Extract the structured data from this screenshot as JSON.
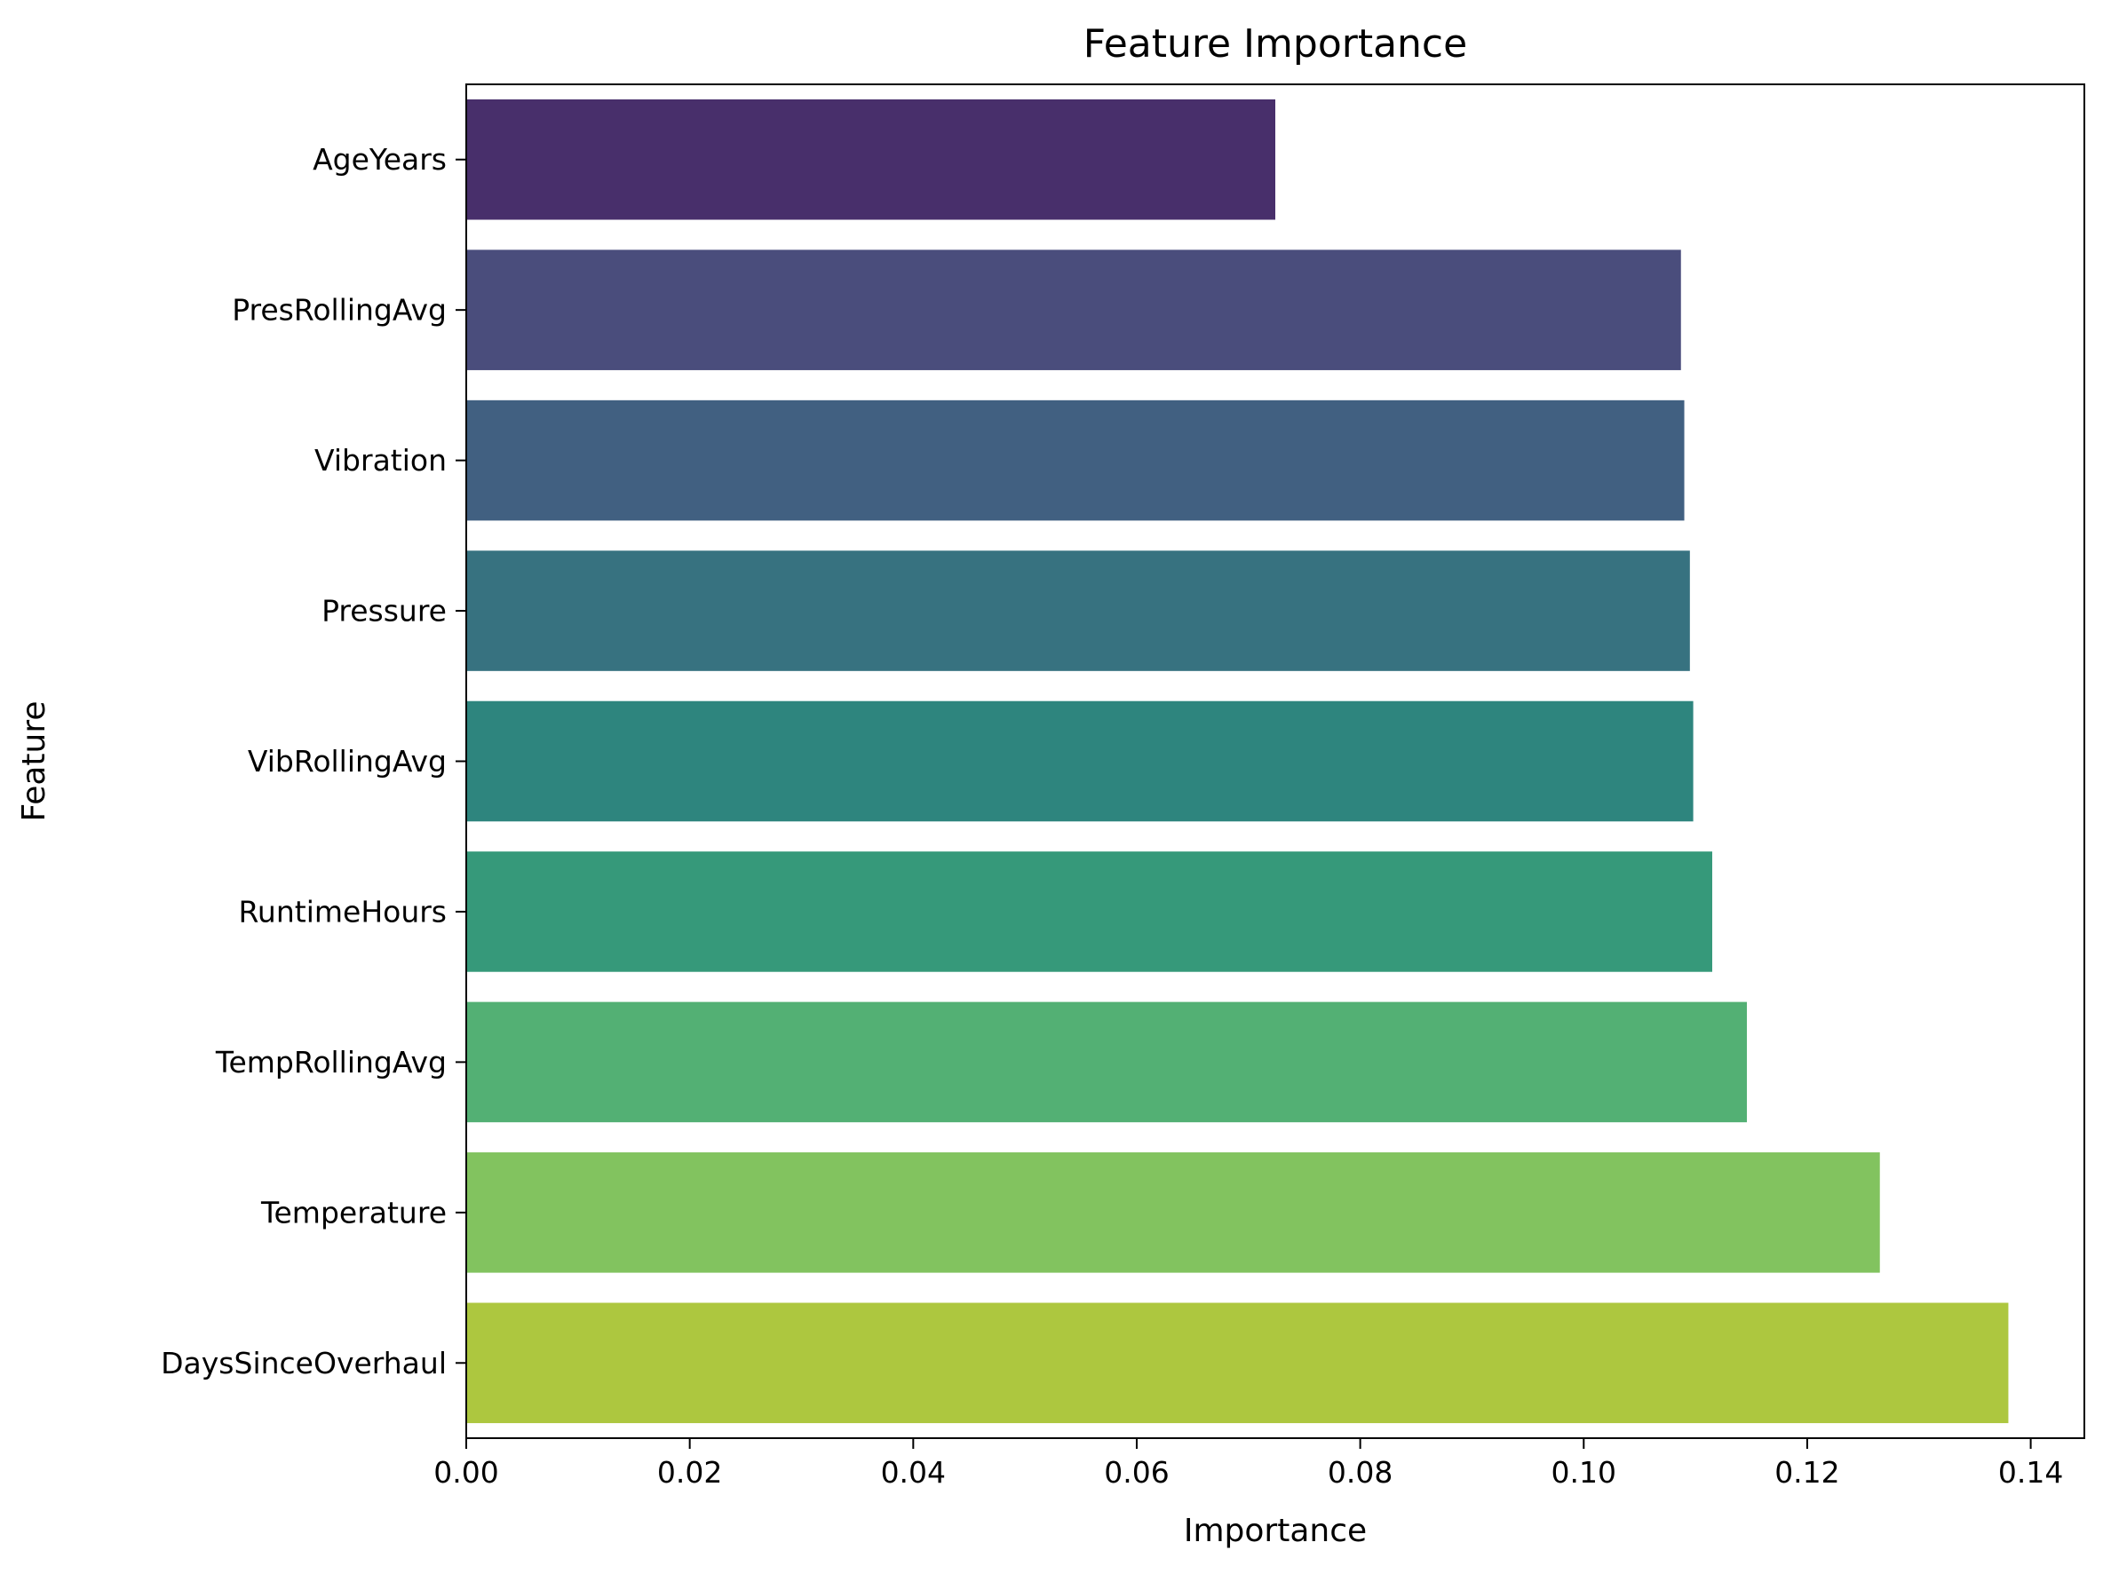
{
  "chart_data": {
    "type": "bar",
    "orientation": "horizontal",
    "title": "Feature Importance",
    "xlabel": "Importance",
    "ylabel": "Feature",
    "xlim": [
      0,
      0.1448
    ],
    "xticks": [
      0.0,
      0.02,
      0.04,
      0.06,
      0.08,
      0.1,
      0.12,
      0.14
    ],
    "xtick_labels": [
      "0.00",
      "0.02",
      "0.04",
      "0.06",
      "0.08",
      "0.10",
      "0.12",
      "0.14"
    ],
    "grid": false,
    "legend": "none",
    "categories": [
      "AgeYears",
      "PresRollingAvg",
      "Vibration",
      "Pressure",
      "VibRollingAvg",
      "RuntimeHours",
      "TempRollingAvg",
      "Temperature",
      "DaysSinceOverhaul"
    ],
    "values": [
      0.0724,
      0.1087,
      0.109,
      0.1095,
      0.1098,
      0.1115,
      0.1146,
      0.1265,
      0.138
    ],
    "colors": [
      "#482f6b",
      "#4a4d7c",
      "#416081",
      "#377280",
      "#2e857e",
      "#36997a",
      "#53b074",
      "#82c35f",
      "#adc73f"
    ]
  }
}
